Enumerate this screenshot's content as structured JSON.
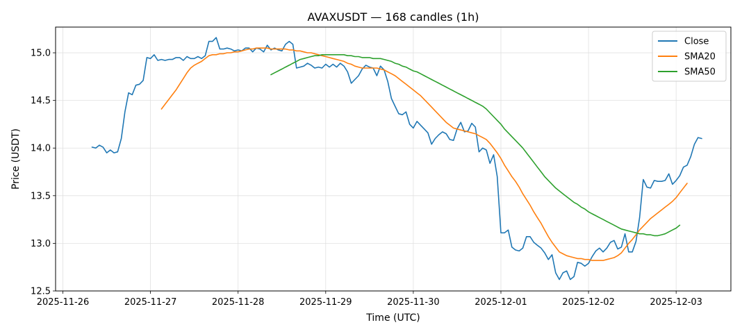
{
  "chart_data": {
    "type": "line",
    "title": "AVAXUSDT — 168 candles (1h)",
    "xlabel": "Time (UTC)",
    "ylabel": "Price (USDT)",
    "x_start": "2025-11-26T08:00",
    "x_interval": "1h",
    "xlim": [
      "2025-11-25T22:00",
      "2025-12-03T15:00"
    ],
    "ylim": [
      12.5,
      15.27
    ],
    "x_ticks": [
      "2025-11-26",
      "2025-11-27",
      "2025-11-28",
      "2025-11-29",
      "2025-11-30",
      "2025-12-01",
      "2025-12-02",
      "2025-12-03"
    ],
    "y_ticks": [
      "12.5",
      "13.0",
      "13.5",
      "14.0",
      "14.5",
      "15.0"
    ],
    "grid": true,
    "legend_position": "top-right",
    "series": [
      {
        "name": "Close",
        "color": "#1f77b4",
        "values": [
          14.01,
          14.0,
          14.03,
          14.01,
          13.95,
          13.98,
          13.95,
          13.96,
          14.1,
          14.38,
          14.58,
          14.56,
          14.66,
          14.67,
          14.71,
          14.95,
          14.94,
          14.98,
          14.92,
          14.93,
          14.92,
          14.93,
          14.93,
          14.95,
          14.95,
          14.92,
          14.96,
          14.94,
          14.94,
          14.96,
          14.94,
          14.97,
          15.12,
          15.12,
          15.16,
          15.04,
          15.04,
          15.05,
          15.04,
          15.02,
          15.03,
          15.02,
          15.05,
          15.05,
          15.01,
          15.05,
          15.04,
          15.01,
          15.08,
          15.03,
          15.05,
          15.03,
          15.02,
          15.09,
          15.12,
          15.09,
          14.84,
          14.85,
          14.86,
          14.89,
          14.87,
          14.84,
          14.85,
          14.84,
          14.88,
          14.85,
          14.88,
          14.85,
          14.89,
          14.86,
          14.8,
          14.68,
          14.72,
          14.76,
          14.83,
          14.87,
          14.85,
          14.84,
          14.76,
          14.86,
          14.82,
          14.7,
          14.52,
          14.44,
          14.36,
          14.35,
          14.38,
          14.25,
          14.21,
          14.28,
          14.24,
          14.2,
          14.16,
          14.04,
          14.1,
          14.14,
          14.17,
          14.15,
          14.09,
          14.08,
          14.2,
          14.27,
          14.17,
          14.18,
          14.26,
          14.22,
          13.96,
          14.0,
          13.98,
          13.84,
          13.93,
          13.7,
          13.11,
          13.11,
          13.14,
          12.96,
          12.93,
          12.92,
          12.95,
          13.07,
          13.07,
          13.01,
          12.98,
          12.95,
          12.9,
          12.83,
          12.88,
          12.69,
          12.62,
          12.69,
          12.71,
          12.62,
          12.65,
          12.8,
          12.79,
          12.76,
          12.79,
          12.86,
          12.92,
          12.95,
          12.91,
          12.95,
          13.01,
          13.03,
          12.94,
          12.96,
          13.1,
          12.91,
          12.91,
          13.02,
          13.27,
          13.67,
          13.59,
          13.58,
          13.66,
          13.65,
          13.65,
          13.66,
          13.73,
          13.62,
          13.66,
          13.71,
          13.8,
          13.82,
          13.91,
          14.04,
          14.11,
          14.1
        ]
      },
      {
        "name": "SMA20",
        "color": "#ff7f0e",
        "values": [
          null,
          null,
          null,
          null,
          null,
          null,
          null,
          null,
          null,
          null,
          null,
          null,
          null,
          null,
          null,
          null,
          null,
          null,
          null,
          14.41,
          14.46,
          14.51,
          14.56,
          14.61,
          14.67,
          14.73,
          14.79,
          14.84,
          14.87,
          14.89,
          14.91,
          14.94,
          14.97,
          14.98,
          14.98,
          14.99,
          14.99,
          15.0,
          15.0,
          15.01,
          15.01,
          15.02,
          15.03,
          15.04,
          15.04,
          15.05,
          15.05,
          15.05,
          15.05,
          15.04,
          15.04,
          15.04,
          15.04,
          15.04,
          15.03,
          15.03,
          15.02,
          15.02,
          15.01,
          15.0,
          15.0,
          14.99,
          14.98,
          14.97,
          14.96,
          14.95,
          14.94,
          14.93,
          14.92,
          14.91,
          14.89,
          14.88,
          14.86,
          14.85,
          14.84,
          14.84,
          14.84,
          14.84,
          14.84,
          14.83,
          14.82,
          14.8,
          14.78,
          14.76,
          14.73,
          14.7,
          14.67,
          14.64,
          14.61,
          14.58,
          14.55,
          14.51,
          14.47,
          14.43,
          14.39,
          14.35,
          14.31,
          14.27,
          14.24,
          14.21,
          14.2,
          14.19,
          14.18,
          14.17,
          14.16,
          14.15,
          14.13,
          14.11,
          14.09,
          14.05,
          14.0,
          13.95,
          13.89,
          13.82,
          13.76,
          13.7,
          13.65,
          13.59,
          13.52,
          13.46,
          13.4,
          13.33,
          13.27,
          13.21,
          13.14,
          13.07,
          13.01,
          12.96,
          12.91,
          12.89,
          12.87,
          12.86,
          12.85,
          12.84,
          12.84,
          12.83,
          12.83,
          12.82,
          12.82,
          12.82,
          12.82,
          12.83,
          12.84,
          12.85,
          12.87,
          12.9,
          12.95,
          13.0,
          13.04,
          13.09,
          13.14,
          13.18,
          13.22,
          13.26,
          13.29,
          13.32,
          13.35,
          13.38,
          13.41,
          13.44,
          13.48,
          13.53,
          13.58,
          13.63
        ]
      },
      {
        "name": "SMA50",
        "color": "#2ca02c",
        "values": [
          null,
          null,
          null,
          null,
          null,
          null,
          null,
          null,
          null,
          null,
          null,
          null,
          null,
          null,
          null,
          null,
          null,
          null,
          null,
          null,
          null,
          null,
          null,
          null,
          null,
          null,
          null,
          null,
          null,
          null,
          null,
          null,
          null,
          null,
          null,
          null,
          null,
          null,
          null,
          null,
          null,
          null,
          null,
          null,
          null,
          null,
          null,
          null,
          null,
          14.77,
          14.79,
          14.81,
          14.83,
          14.85,
          14.87,
          14.89,
          14.91,
          14.93,
          14.94,
          14.95,
          14.96,
          14.97,
          14.97,
          14.98,
          14.98,
          14.98,
          14.98,
          14.98,
          14.98,
          14.98,
          14.97,
          14.97,
          14.96,
          14.96,
          14.95,
          14.95,
          14.95,
          14.94,
          14.94,
          14.94,
          14.93,
          14.92,
          14.91,
          14.89,
          14.88,
          14.86,
          14.85,
          14.83,
          14.81,
          14.8,
          14.78,
          14.76,
          14.74,
          14.72,
          14.7,
          14.68,
          14.66,
          14.64,
          14.62,
          14.6,
          14.58,
          14.56,
          14.54,
          14.52,
          14.5,
          14.48,
          14.46,
          14.44,
          14.41,
          14.37,
          14.33,
          14.29,
          14.25,
          14.2,
          14.16,
          14.12,
          14.08,
          14.04,
          14.0,
          13.95,
          13.9,
          13.85,
          13.8,
          13.75,
          13.7,
          13.66,
          13.62,
          13.58,
          13.55,
          13.52,
          13.49,
          13.46,
          13.43,
          13.41,
          13.38,
          13.36,
          13.33,
          13.31,
          13.29,
          13.27,
          13.25,
          13.23,
          13.21,
          13.19,
          13.17,
          13.15,
          13.14,
          13.13,
          13.12,
          13.11,
          13.1,
          13.1,
          13.09,
          13.09,
          13.08,
          13.08,
          13.09,
          13.1,
          13.12,
          13.14,
          13.16,
          13.19
        ]
      }
    ]
  }
}
